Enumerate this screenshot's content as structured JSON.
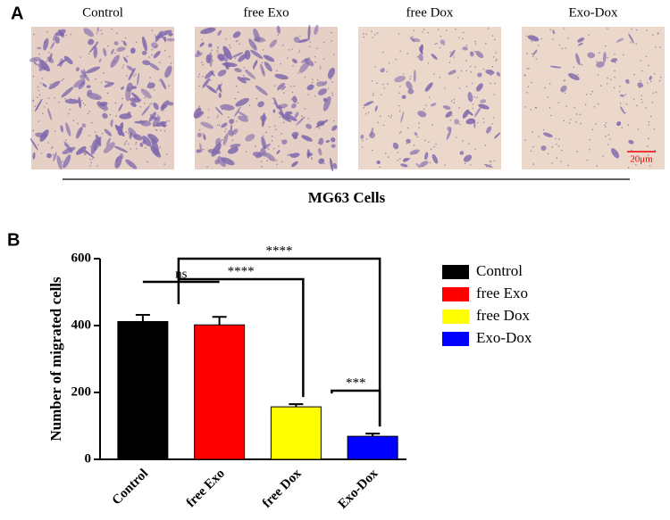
{
  "panel_a": {
    "label": "A",
    "images": [
      "Control",
      "free Exo",
      "free Dox",
      "Exo-Dox"
    ],
    "caption": "MG63 Cells",
    "scale_bar": "20μm"
  },
  "panel_b_label": "B",
  "chart_data": {
    "type": "bar",
    "ylabel": "Number of migrated cells",
    "categories": [
      "Control",
      "free Exo",
      "free Dox",
      "Exo-Dox"
    ],
    "values": [
      412,
      402,
      157,
      69
    ],
    "errors": [
      20,
      24,
      8,
      8
    ],
    "colors": [
      "#000000",
      "#ff0000",
      "#ffff00",
      "#0000ff"
    ],
    "ylim": [
      0,
      600
    ],
    "yticks": [
      0,
      200,
      400,
      600
    ],
    "legend": "right",
    "annotations": [
      {
        "label": "ns",
        "from": "Control",
        "to": "free Exo"
      },
      {
        "label": "****",
        "from": "Control",
        "to": "Exo-Dox"
      },
      {
        "label": "****",
        "from": "Control",
        "to": "free Dox"
      },
      {
        "label": "***",
        "from": "free Dox",
        "to": "Exo-Dox"
      }
    ]
  }
}
